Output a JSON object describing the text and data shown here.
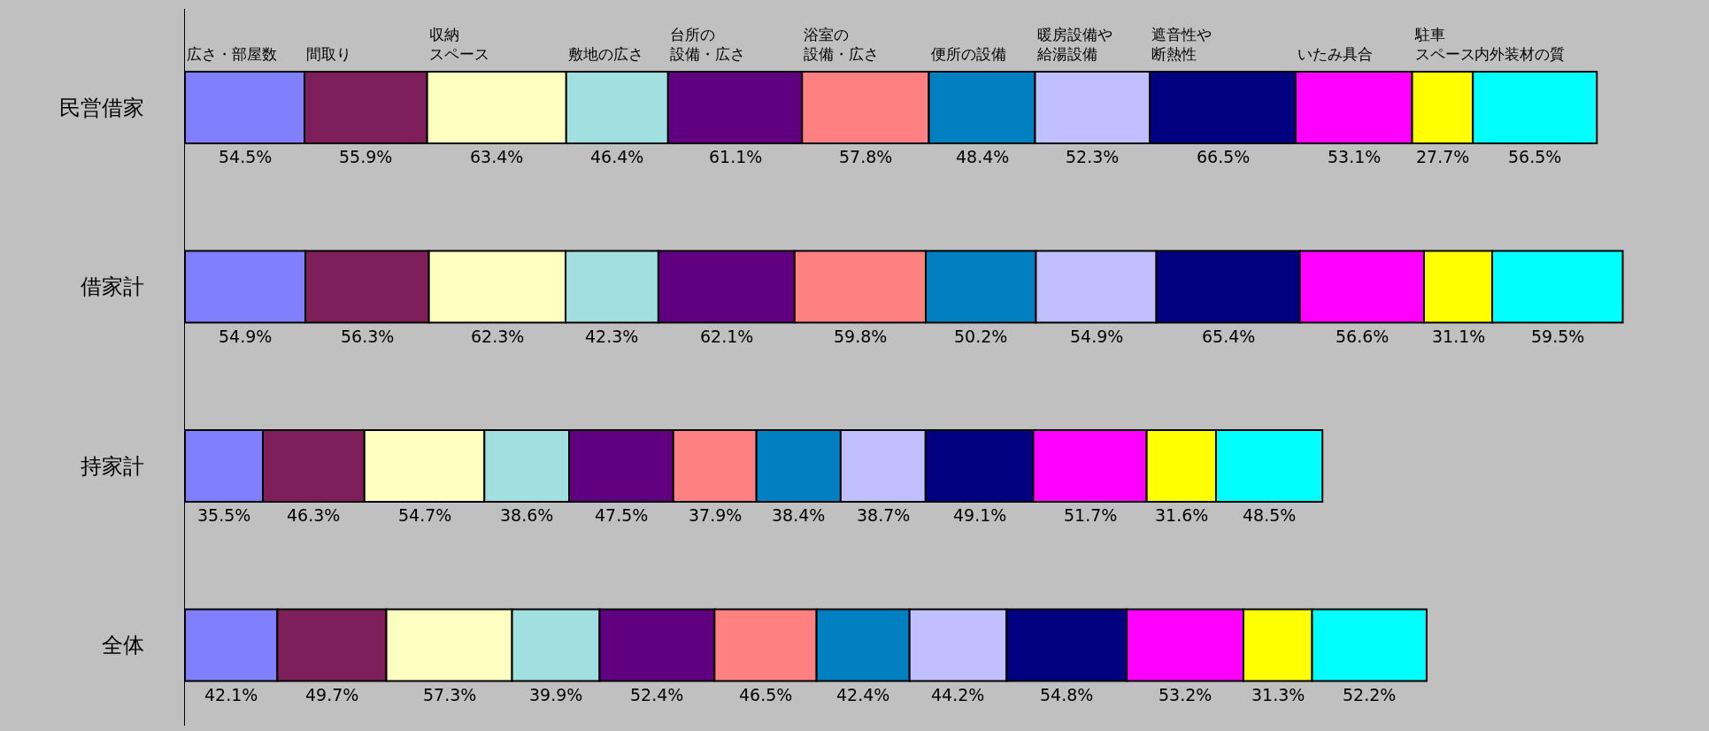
{
  "chart_data": {
    "type": "bar",
    "orientation": "horizontal",
    "stacked": true,
    "legend": false,
    "grid": false,
    "tick_labels": "y",
    "categories": [
      "民営借家",
      "借家計",
      "持家計",
      "全体"
    ],
    "series": [
      {
        "name": "広さ・部屋数",
        "color": "#8080ff",
        "values": [
          54.5,
          54.9,
          35.5,
          42.1
        ],
        "value_labels": [
          "54.5%",
          "54.9%",
          "35.5%",
          "42.1%"
        ]
      },
      {
        "name": "間取り",
        "color": "#7f1f5a",
        "values": [
          55.9,
          56.3,
          46.3,
          49.7
        ],
        "value_labels": [
          "55.9%",
          "56.3%",
          "46.3%",
          "49.7%"
        ]
      },
      {
        "name": "収納スペース",
        "color": "#ffffc0",
        "values": [
          63.4,
          62.3,
          54.7,
          57.3
        ],
        "value_labels": [
          "63.4%",
          "62.3%",
          "54.7%",
          "57.3%"
        ]
      },
      {
        "name": "敷地の広さ",
        "color": "#a0e0e0",
        "values": [
          46.4,
          42.3,
          38.6,
          39.9
        ],
        "value_labels": [
          "46.4%",
          "42.3%",
          "38.6%",
          "39.9%"
        ]
      },
      {
        "name": "台所の設備・広さ",
        "color": "#600080",
        "values": [
          61.1,
          62.1,
          47.5,
          52.4
        ],
        "value_labels": [
          "61.1%",
          "62.1%",
          "47.5%",
          "52.4%"
        ]
      },
      {
        "name": "浴室の設備・広さ",
        "color": "#ff8080",
        "values": [
          57.8,
          59.8,
          37.9,
          46.5
        ],
        "value_labels": [
          "57.8%",
          "59.8%",
          "37.9%",
          "46.5%"
        ]
      },
      {
        "name": "便所の設備",
        "color": "#0080c0",
        "values": [
          48.4,
          50.2,
          38.4,
          42.4
        ],
        "value_labels": [
          "48.4%",
          "50.2%",
          "38.4%",
          "42.4%"
        ]
      },
      {
        "name": "暖房設備や給湯設備",
        "color": "#c0c0ff",
        "values": [
          52.3,
          54.9,
          38.7,
          44.2
        ],
        "value_labels": [
          "52.3%",
          "54.9%",
          "38.7%",
          "44.2%"
        ]
      },
      {
        "name": "遮音性や断熱性",
        "color": "#000080",
        "values": [
          66.5,
          65.4,
          49.1,
          54.8
        ],
        "value_labels": [
          "66.5%",
          "65.4%",
          "49.1%",
          "54.8%"
        ]
      },
      {
        "name": "いたみ具合",
        "color": "#ff00ff",
        "values": [
          53.1,
          56.6,
          51.7,
          53.2
        ],
        "value_labels": [
          "53.1%",
          "56.6%",
          "51.7%",
          "53.2%"
        ]
      },
      {
        "name": "駐車スペース",
        "color": "#ffff00",
        "values": [
          27.7,
          31.1,
          31.6,
          31.3
        ],
        "value_labels": [
          "27.7%",
          "31.1%",
          "31.6%",
          "31.3%"
        ]
      },
      {
        "name": "内外装材の質",
        "color": "#00ffff",
        "values": [
          56.5,
          59.5,
          48.5,
          52.2
        ],
        "value_labels": [
          "56.5%",
          "59.5%",
          "48.5%",
          "52.2%"
        ]
      }
    ]
  }
}
